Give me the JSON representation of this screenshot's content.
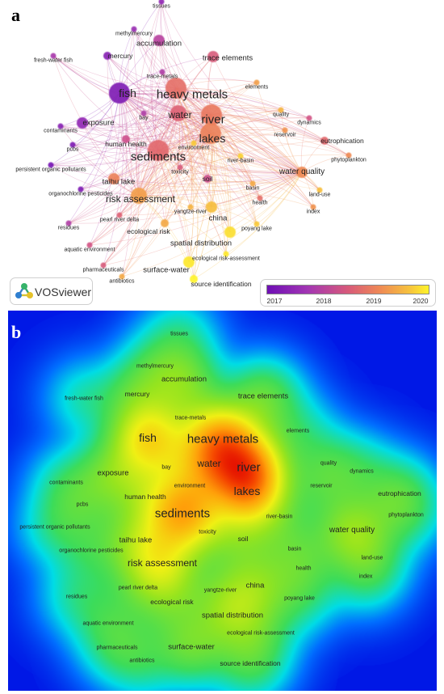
{
  "panels": [
    {
      "letter": "a",
      "view": "overlay"
    },
    {
      "letter": "b",
      "view": "density"
    }
  ],
  "brand": {
    "name": "VOSviewer"
  },
  "legend": {
    "ticks": [
      "2017",
      "2018",
      "2019",
      "2020"
    ]
  },
  "colors": {
    "year_2017": "#6e0fb5",
    "year_2018": "#c04f8e",
    "year_2019": "#ef8a55",
    "year_2020": "#fff32a",
    "density_background": "#0018e6"
  },
  "terms": [
    {
      "id": "tissues",
      "label": "tissues",
      "weight": 3,
      "year": 2017.4
    },
    {
      "id": "methylmercury",
      "label": "methylmercury",
      "weight": 3,
      "year": 2017.5
    },
    {
      "id": "accumulation",
      "label": "accumulation",
      "weight": 5,
      "year": 2017.9
    },
    {
      "id": "fresh-water-fish",
      "label": "fresh-water fish",
      "weight": 3,
      "year": 2017.7
    },
    {
      "id": "mercury",
      "label": "mercury",
      "weight": 4,
      "year": 2017.3
    },
    {
      "id": "trace-elements",
      "label": "trace elements",
      "weight": 5,
      "year": 2018.4
    },
    {
      "id": "trace-metals",
      "label": "trace-metals",
      "weight": 3,
      "year": 2017.8
    },
    {
      "id": "elements",
      "label": "elements",
      "weight": 3,
      "year": 2019.2
    },
    {
      "id": "fish",
      "label": "fish",
      "weight": 9,
      "year": 2017.2
    },
    {
      "id": "heavy-metals",
      "label": "heavy metals",
      "weight": 10,
      "year": 2018.7
    },
    {
      "id": "water",
      "label": "water",
      "weight": 7,
      "year": 2018.5
    },
    {
      "id": "river",
      "label": "river",
      "weight": 10,
      "year": 2018.8
    },
    {
      "id": "lakes",
      "label": "lakes",
      "weight": 9,
      "year": 2018.9
    },
    {
      "id": "quality",
      "label": "quality",
      "weight": 3,
      "year": 2019.4
    },
    {
      "id": "dynamics",
      "label": "dynamics",
      "weight": 3,
      "year": 2018.3
    },
    {
      "id": "eutrophication",
      "label": "eutrophication",
      "weight": 4,
      "year": 2018.6
    },
    {
      "id": "exposure",
      "label": "exposure",
      "weight": 5,
      "year": 2017.4
    },
    {
      "id": "bay",
      "label": "bay",
      "weight": 3,
      "year": 2017.8
    },
    {
      "id": "contaminants",
      "label": "contaminants",
      "weight": 3,
      "year": 2017.3
    },
    {
      "id": "environment",
      "label": "environment",
      "weight": 3,
      "year": 2019.6
    },
    {
      "id": "reservoir",
      "label": "reservoir",
      "weight": 3,
      "year": 2019.1
    },
    {
      "id": "human-health",
      "label": "human health",
      "weight": 4,
      "year": 2018.2
    },
    {
      "id": "pcbs",
      "label": "pcbs",
      "weight": 3,
      "year": 2017.2
    },
    {
      "id": "phytoplankton",
      "label": "phytoplankton",
      "weight": 3,
      "year": 2019.0
    },
    {
      "id": "sediments",
      "label": "sediments",
      "weight": 10,
      "year": 2018.6
    },
    {
      "id": "river-basin",
      "label": "river-basin",
      "weight": 3,
      "year": 2019.7
    },
    {
      "id": "persistent-organic-pollutants",
      "label": "persistent organic pollutants",
      "weight": 3,
      "year": 2017.1
    },
    {
      "id": "water-quality",
      "label": "water quality",
      "weight": 6,
      "year": 2019.0
    },
    {
      "id": "toxicity",
      "label": "toxicity",
      "weight": 3,
      "year": 2018.4
    },
    {
      "id": "soil",
      "label": "soil",
      "weight": 4,
      "year": 2018.2
    },
    {
      "id": "organochlorine-pesticides",
      "label": "organochlorine pesticides",
      "weight": 3,
      "year": 2017.2
    },
    {
      "id": "taihu-lake",
      "label": "taihu lake",
      "weight": 5,
      "year": 2018.9
    },
    {
      "id": "basin",
      "label": "basin",
      "weight": 3,
      "year": 2019.3
    },
    {
      "id": "land-use",
      "label": "land-use",
      "weight": 3,
      "year": 2019.5
    },
    {
      "id": "health",
      "label": "health",
      "weight": 3,
      "year": 2018.7
    },
    {
      "id": "risk-assessment",
      "label": "risk assessment",
      "weight": 7,
      "year": 2019.2
    },
    {
      "id": "index",
      "label": "index",
      "weight": 3,
      "year": 2019.1
    },
    {
      "id": "pearl-river-delta",
      "label": "pearl river delta",
      "weight": 3,
      "year": 2018.5
    },
    {
      "id": "yangtze-river",
      "label": "yangtze-river",
      "weight": 3,
      "year": 2019.4
    },
    {
      "id": "china",
      "label": "china",
      "weight": 5,
      "year": 2019.5
    },
    {
      "id": "residues",
      "label": "residues",
      "weight": 3,
      "year": 2017.8
    },
    {
      "id": "ecological-risk",
      "label": "ecological risk",
      "weight": 4,
      "year": 2019.3
    },
    {
      "id": "poyang-lake",
      "label": "poyang lake",
      "weight": 3,
      "year": 2019.6
    },
    {
      "id": "aquatic-environment",
      "label": "aquatic environment",
      "weight": 3,
      "year": 2018.3
    },
    {
      "id": "spatial-distribution",
      "label": "spatial distribution",
      "weight": 5,
      "year": 2019.8
    },
    {
      "id": "ecological-risk-assessment",
      "label": "ecological risk-assessment",
      "weight": 3,
      "year": 2019.9
    },
    {
      "id": "pharmaceuticals",
      "label": "pharmaceuticals",
      "weight": 3,
      "year": 2018.4
    },
    {
      "id": "surface-water",
      "label": "surface-water",
      "weight": 5,
      "year": 2019.9
    },
    {
      "id": "antibiotics",
      "label": "antibiotics",
      "weight": 3,
      "year": 2019.3
    },
    {
      "id": "source-identification",
      "label": "source identification",
      "weight": 4,
      "year": 2020.0
    }
  ]
}
